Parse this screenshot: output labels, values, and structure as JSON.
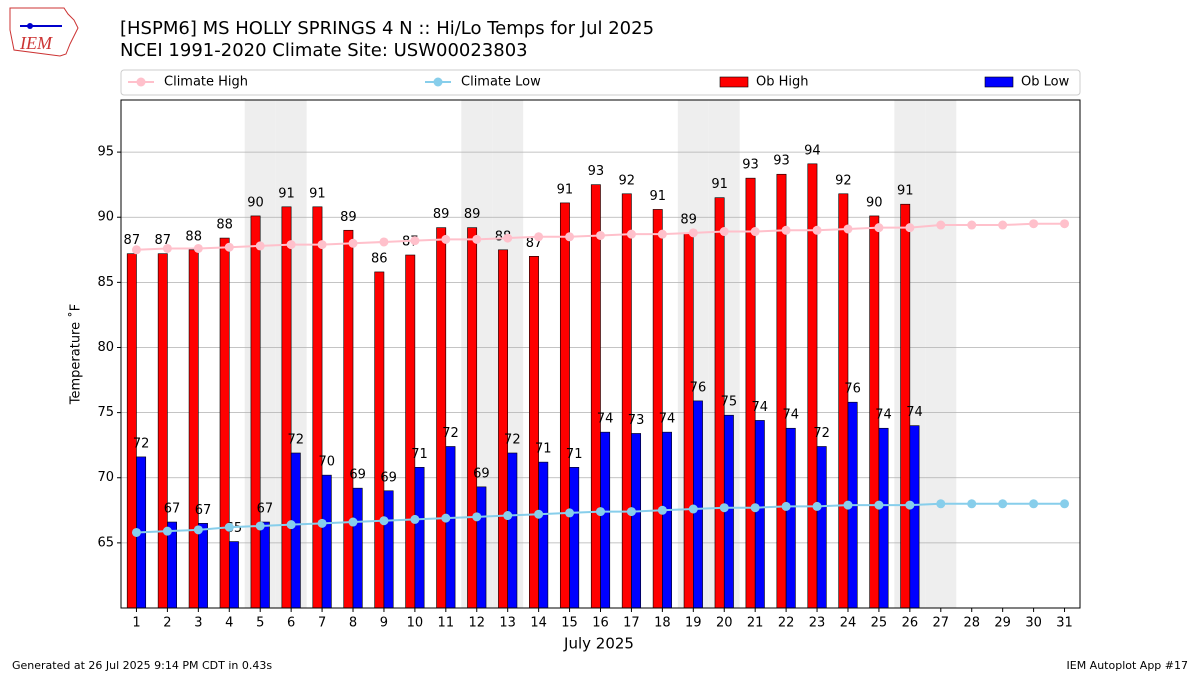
{
  "chart_data": {
    "type": "bar",
    "title": "[HSPM6] MS HOLLY SPRINGS 4 N :: Hi/Lo Temps for Jul 2025",
    "subtitle": "NCEI 1991-2020 Climate Site: USW00023803",
    "x_label": "July 2025",
    "y_label": "Temperature ˚F",
    "logo_text": "IEM",
    "footer_left": "Generated at 26 Jul 2025 9:14 PM CDT in 0.43s",
    "footer_right": "IEM Autoplot App #17",
    "x": [
      1,
      2,
      3,
      4,
      5,
      6,
      7,
      8,
      9,
      10,
      11,
      12,
      13,
      14,
      15,
      16,
      17,
      18,
      19,
      20,
      21,
      22,
      23,
      24,
      25,
      26,
      27,
      28,
      29,
      30,
      31
    ],
    "xlim": [
      0.5,
      31.5
    ],
    "xticks": [
      1,
      2,
      3,
      4,
      5,
      6,
      7,
      8,
      9,
      10,
      11,
      12,
      13,
      14,
      15,
      16,
      17,
      18,
      19,
      20,
      21,
      22,
      23,
      24,
      25,
      26,
      27,
      28,
      29,
      30,
      31
    ],
    "ylim": [
      60,
      99
    ],
    "yticks": [
      65,
      70,
      75,
      80,
      85,
      90,
      95
    ],
    "grid": true,
    "legend": "top",
    "shaded_days": [
      5,
      6,
      12,
      13,
      19,
      20,
      26,
      27
    ],
    "shade_color": "#eeeeee",
    "series": [
      {
        "name": "Climate High",
        "type": "line",
        "color": "#ffc0cb",
        "values": [
          87.5,
          87.6,
          87.6,
          87.7,
          87.8,
          87.9,
          87.9,
          88.0,
          88.1,
          88.2,
          88.3,
          88.3,
          88.4,
          88.5,
          88.5,
          88.6,
          88.7,
          88.7,
          88.8,
          88.9,
          88.9,
          89.0,
          89.0,
          89.1,
          89.2,
          89.2,
          89.4,
          89.4,
          89.4,
          89.5,
          89.5
        ]
      },
      {
        "name": "Climate Low",
        "type": "line",
        "color": "#87ceeb",
        "values": [
          65.8,
          65.9,
          66.0,
          66.2,
          66.3,
          66.4,
          66.5,
          66.6,
          66.7,
          66.8,
          66.9,
          67.0,
          67.1,
          67.2,
          67.3,
          67.4,
          67.4,
          67.5,
          67.6,
          67.7,
          67.7,
          67.8,
          67.8,
          67.9,
          67.9,
          67.9,
          68.0,
          68.0,
          68.0,
          68.0,
          68.0
        ]
      },
      {
        "name": "Ob High",
        "type": "bar",
        "color": "#ff0000",
        "offset": -1,
        "values": [
          87.2,
          87.2,
          87.5,
          88.4,
          90.1,
          90.8,
          90.8,
          89.0,
          85.8,
          87.1,
          89.2,
          89.2,
          87.5,
          87.0,
          91.1,
          92.5,
          91.8,
          90.6,
          88.8,
          91.5,
          93.0,
          93.3,
          94.1,
          91.8,
          90.1,
          91.0,
          null,
          null,
          null,
          null,
          null
        ],
        "value_labels": [
          "87",
          "87",
          "88",
          "88",
          "90",
          "91",
          "91",
          "89",
          "86",
          "87",
          "89",
          "89",
          "88",
          "87",
          "91",
          "93",
          "92",
          "91",
          "89",
          "91",
          "93",
          "93",
          "94",
          "92",
          "90",
          "91",
          null,
          null,
          null,
          null,
          null
        ]
      },
      {
        "name": "Ob Low",
        "type": "bar",
        "color": "#0000ff",
        "offset": 1,
        "values": [
          71.6,
          66.6,
          66.5,
          65.1,
          66.6,
          71.9,
          70.2,
          69.2,
          69.0,
          70.8,
          72.4,
          69.3,
          71.9,
          71.2,
          70.8,
          73.5,
          73.4,
          73.5,
          75.9,
          74.8,
          74.4,
          73.8,
          72.4,
          75.8,
          73.8,
          74.0,
          null,
          null,
          null,
          null,
          null
        ],
        "value_labels": [
          "72",
          "67",
          "67",
          "65",
          "67",
          "72",
          "70",
          "69",
          "69",
          "71",
          "72",
          "69",
          "72",
          "71",
          "71",
          "74",
          "73",
          "74",
          "76",
          "75",
          "74",
          "74",
          "72",
          "76",
          "74",
          "74",
          null,
          null,
          null,
          null,
          null
        ]
      }
    ]
  }
}
